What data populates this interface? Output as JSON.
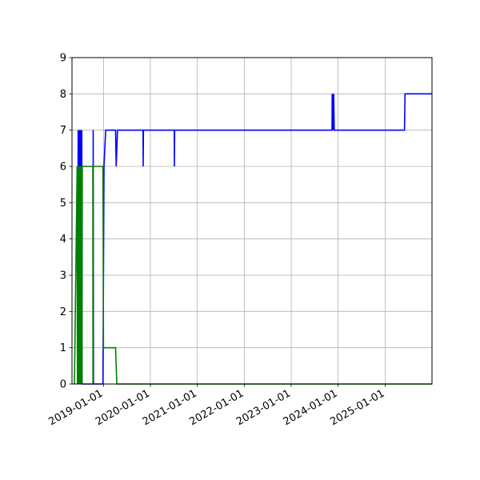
{
  "chart_data": {
    "type": "line",
    "title": "",
    "xlabel": "",
    "ylabel": "",
    "xlim": [
      "2018-05-01",
      "2026-01-01"
    ],
    "ylim": [
      0,
      9
    ],
    "grid": true,
    "x_ticks": [
      "2019-01-01",
      "2020-01-01",
      "2021-01-01",
      "2022-01-01",
      "2023-01-01",
      "2024-01-01",
      "2025-01-01"
    ],
    "y_ticks": [
      "0",
      "1",
      "2",
      "3",
      "4",
      "5",
      "6",
      "7",
      "8",
      "9"
    ],
    "series": [
      {
        "color": "#0000ff",
        "points": [
          [
            "2018-06-15",
            0
          ],
          [
            "2018-06-18",
            7
          ],
          [
            "2018-06-20",
            0
          ],
          [
            "2018-06-22",
            7
          ],
          [
            "2018-06-24",
            0
          ],
          [
            "2018-06-26",
            7
          ],
          [
            "2018-06-28",
            0
          ],
          [
            "2018-06-30",
            7
          ],
          [
            "2018-07-02",
            0
          ],
          [
            "2018-07-04",
            7
          ],
          [
            "2018-07-06",
            0
          ],
          [
            "2018-07-08",
            7
          ],
          [
            "2018-07-10",
            0
          ],
          [
            "2018-07-12",
            7
          ],
          [
            "2018-07-14",
            0
          ],
          [
            "2018-07-16",
            7
          ],
          [
            "2018-07-18",
            0
          ],
          [
            "2018-10-12",
            0
          ],
          [
            "2018-10-13",
            7
          ],
          [
            "2018-10-15",
            0
          ],
          [
            "2018-12-28",
            0
          ],
          [
            "2019-01-05",
            6
          ],
          [
            "2019-01-18",
            7
          ],
          [
            "2019-04-05",
            7
          ],
          [
            "2019-04-10",
            6
          ],
          [
            "2019-04-20",
            7
          ],
          [
            "2019-11-05",
            7
          ],
          [
            "2019-11-06",
            6
          ],
          [
            "2019-11-08",
            7
          ],
          [
            "2020-07-05",
            7
          ],
          [
            "2020-07-06",
            6
          ],
          [
            "2020-07-08",
            7
          ],
          [
            "2023-11-15",
            7
          ],
          [
            "2023-11-16",
            8
          ],
          [
            "2023-11-20",
            7
          ],
          [
            "2023-11-22",
            8
          ],
          [
            "2023-11-26",
            7
          ],
          [
            "2023-11-28",
            8
          ],
          [
            "2023-12-02",
            7
          ],
          [
            "2025-06-01",
            7
          ],
          [
            "2025-06-05",
            8
          ],
          [
            "2026-01-01",
            8
          ]
        ]
      },
      {
        "color": "#008000",
        "points": [
          [
            "2018-05-20",
            0
          ],
          [
            "2018-06-10",
            6
          ],
          [
            "2018-06-12",
            0
          ],
          [
            "2018-06-14",
            6
          ],
          [
            "2018-06-16",
            0
          ],
          [
            "2018-06-18",
            6
          ],
          [
            "2018-06-20",
            0
          ],
          [
            "2018-06-22",
            6
          ],
          [
            "2018-06-24",
            0
          ],
          [
            "2018-06-26",
            6
          ],
          [
            "2018-06-28",
            0
          ],
          [
            "2018-06-30",
            6
          ],
          [
            "2018-07-02",
            0
          ],
          [
            "2018-07-04",
            6
          ],
          [
            "2018-07-06",
            0
          ],
          [
            "2018-07-08",
            6
          ],
          [
            "2018-07-10",
            0
          ],
          [
            "2018-07-12",
            6
          ],
          [
            "2018-07-14",
            0
          ],
          [
            "2018-07-16",
            6
          ],
          [
            "2018-07-18",
            0
          ],
          [
            "2018-07-20",
            6
          ],
          [
            "2018-07-22",
            6
          ],
          [
            "2018-10-10",
            6
          ],
          [
            "2018-10-11",
            0
          ],
          [
            "2018-10-13",
            6
          ],
          [
            "2018-12-28",
            6
          ],
          [
            "2019-01-01",
            1
          ],
          [
            "2019-04-05",
            1
          ],
          [
            "2019-04-15",
            0
          ],
          [
            "2026-01-01",
            0
          ]
        ]
      }
    ]
  }
}
